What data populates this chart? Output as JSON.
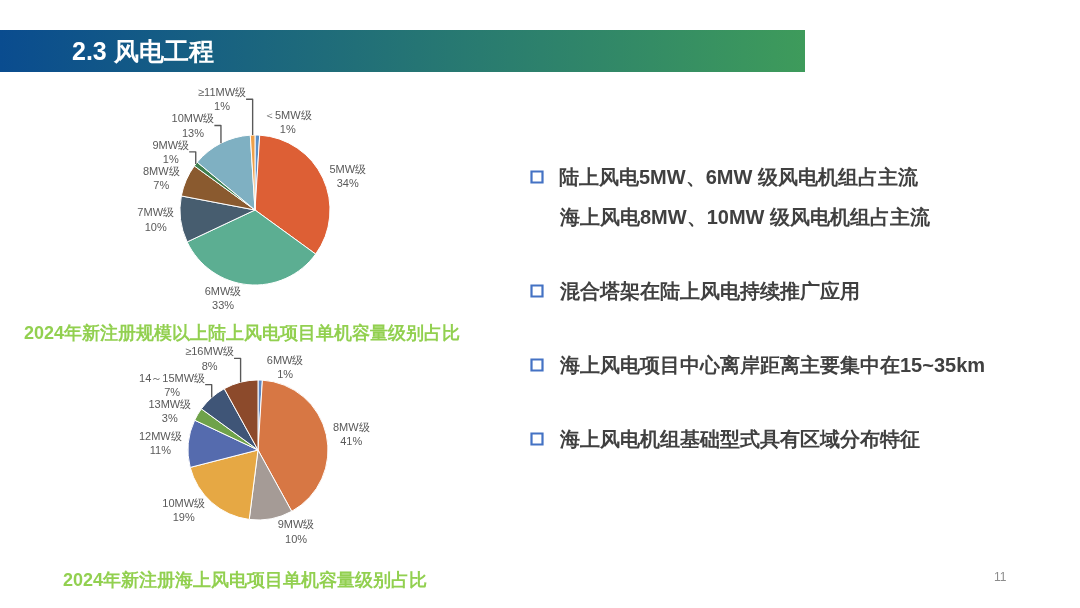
{
  "chart_data": [
    {
      "type": "other",
      "title": "2.3 风电工程",
      "annotations": [
        "11"
      ]
    },
    {
      "type": "pie",
      "title": "2024年新注册规模以上陆上风电项目单机容量级别占比",
      "categories": [
        "＜5MW级",
        "5MW级",
        "6MW级",
        "7MW级",
        "8MW级",
        "9MW级",
        "10MW级",
        "≥11MW级"
      ],
      "values": [
        1,
        34,
        33,
        10,
        7,
        1,
        13,
        1
      ],
      "value_labels": [
        "1%",
        "34%",
        "33%",
        "10%",
        "7%",
        "1%",
        "13%",
        "1%"
      ],
      "colors": [
        "#5b8fc7",
        "#dd5f35",
        "#5cae92",
        "#475d6f",
        "#8a5a2f",
        "#3f7f4f",
        "#7fb0c2",
        "#eea04a"
      ]
    },
    {
      "type": "pie",
      "title": "2024年新注册海上风电项目单机容量级别占比",
      "categories": [
        "6MW级",
        "8MW级",
        "9MW级",
        "10MW级",
        "12MW级",
        "13MW级",
        "14～15MW级",
        "≥16MW级"
      ],
      "values": [
        1,
        41,
        10,
        19,
        11,
        3,
        7,
        8
      ],
      "value_labels": [
        "1%",
        "41%",
        "10%",
        "19%",
        "11%",
        "3%",
        "7%",
        "8%"
      ],
      "colors": [
        "#5d86c0",
        "#d77744",
        "#a59b96",
        "#e6a844",
        "#556bae",
        "#6fa24a",
        "#3f5577",
        "#8c4a2b"
      ]
    },
    {
      "type": "other",
      "annotations": [
        "陆上风电5MW、6MW 级风电机组占主流海上风电8MW、10MW 级风电机组占主流",
        "混合塔架在陆上风电持续推广应用",
        "海上风电项目中心离岸距离主要集中在15~35km",
        "海上风电机组基础型式具有区域分布特征"
      ]
    }
  ]
}
